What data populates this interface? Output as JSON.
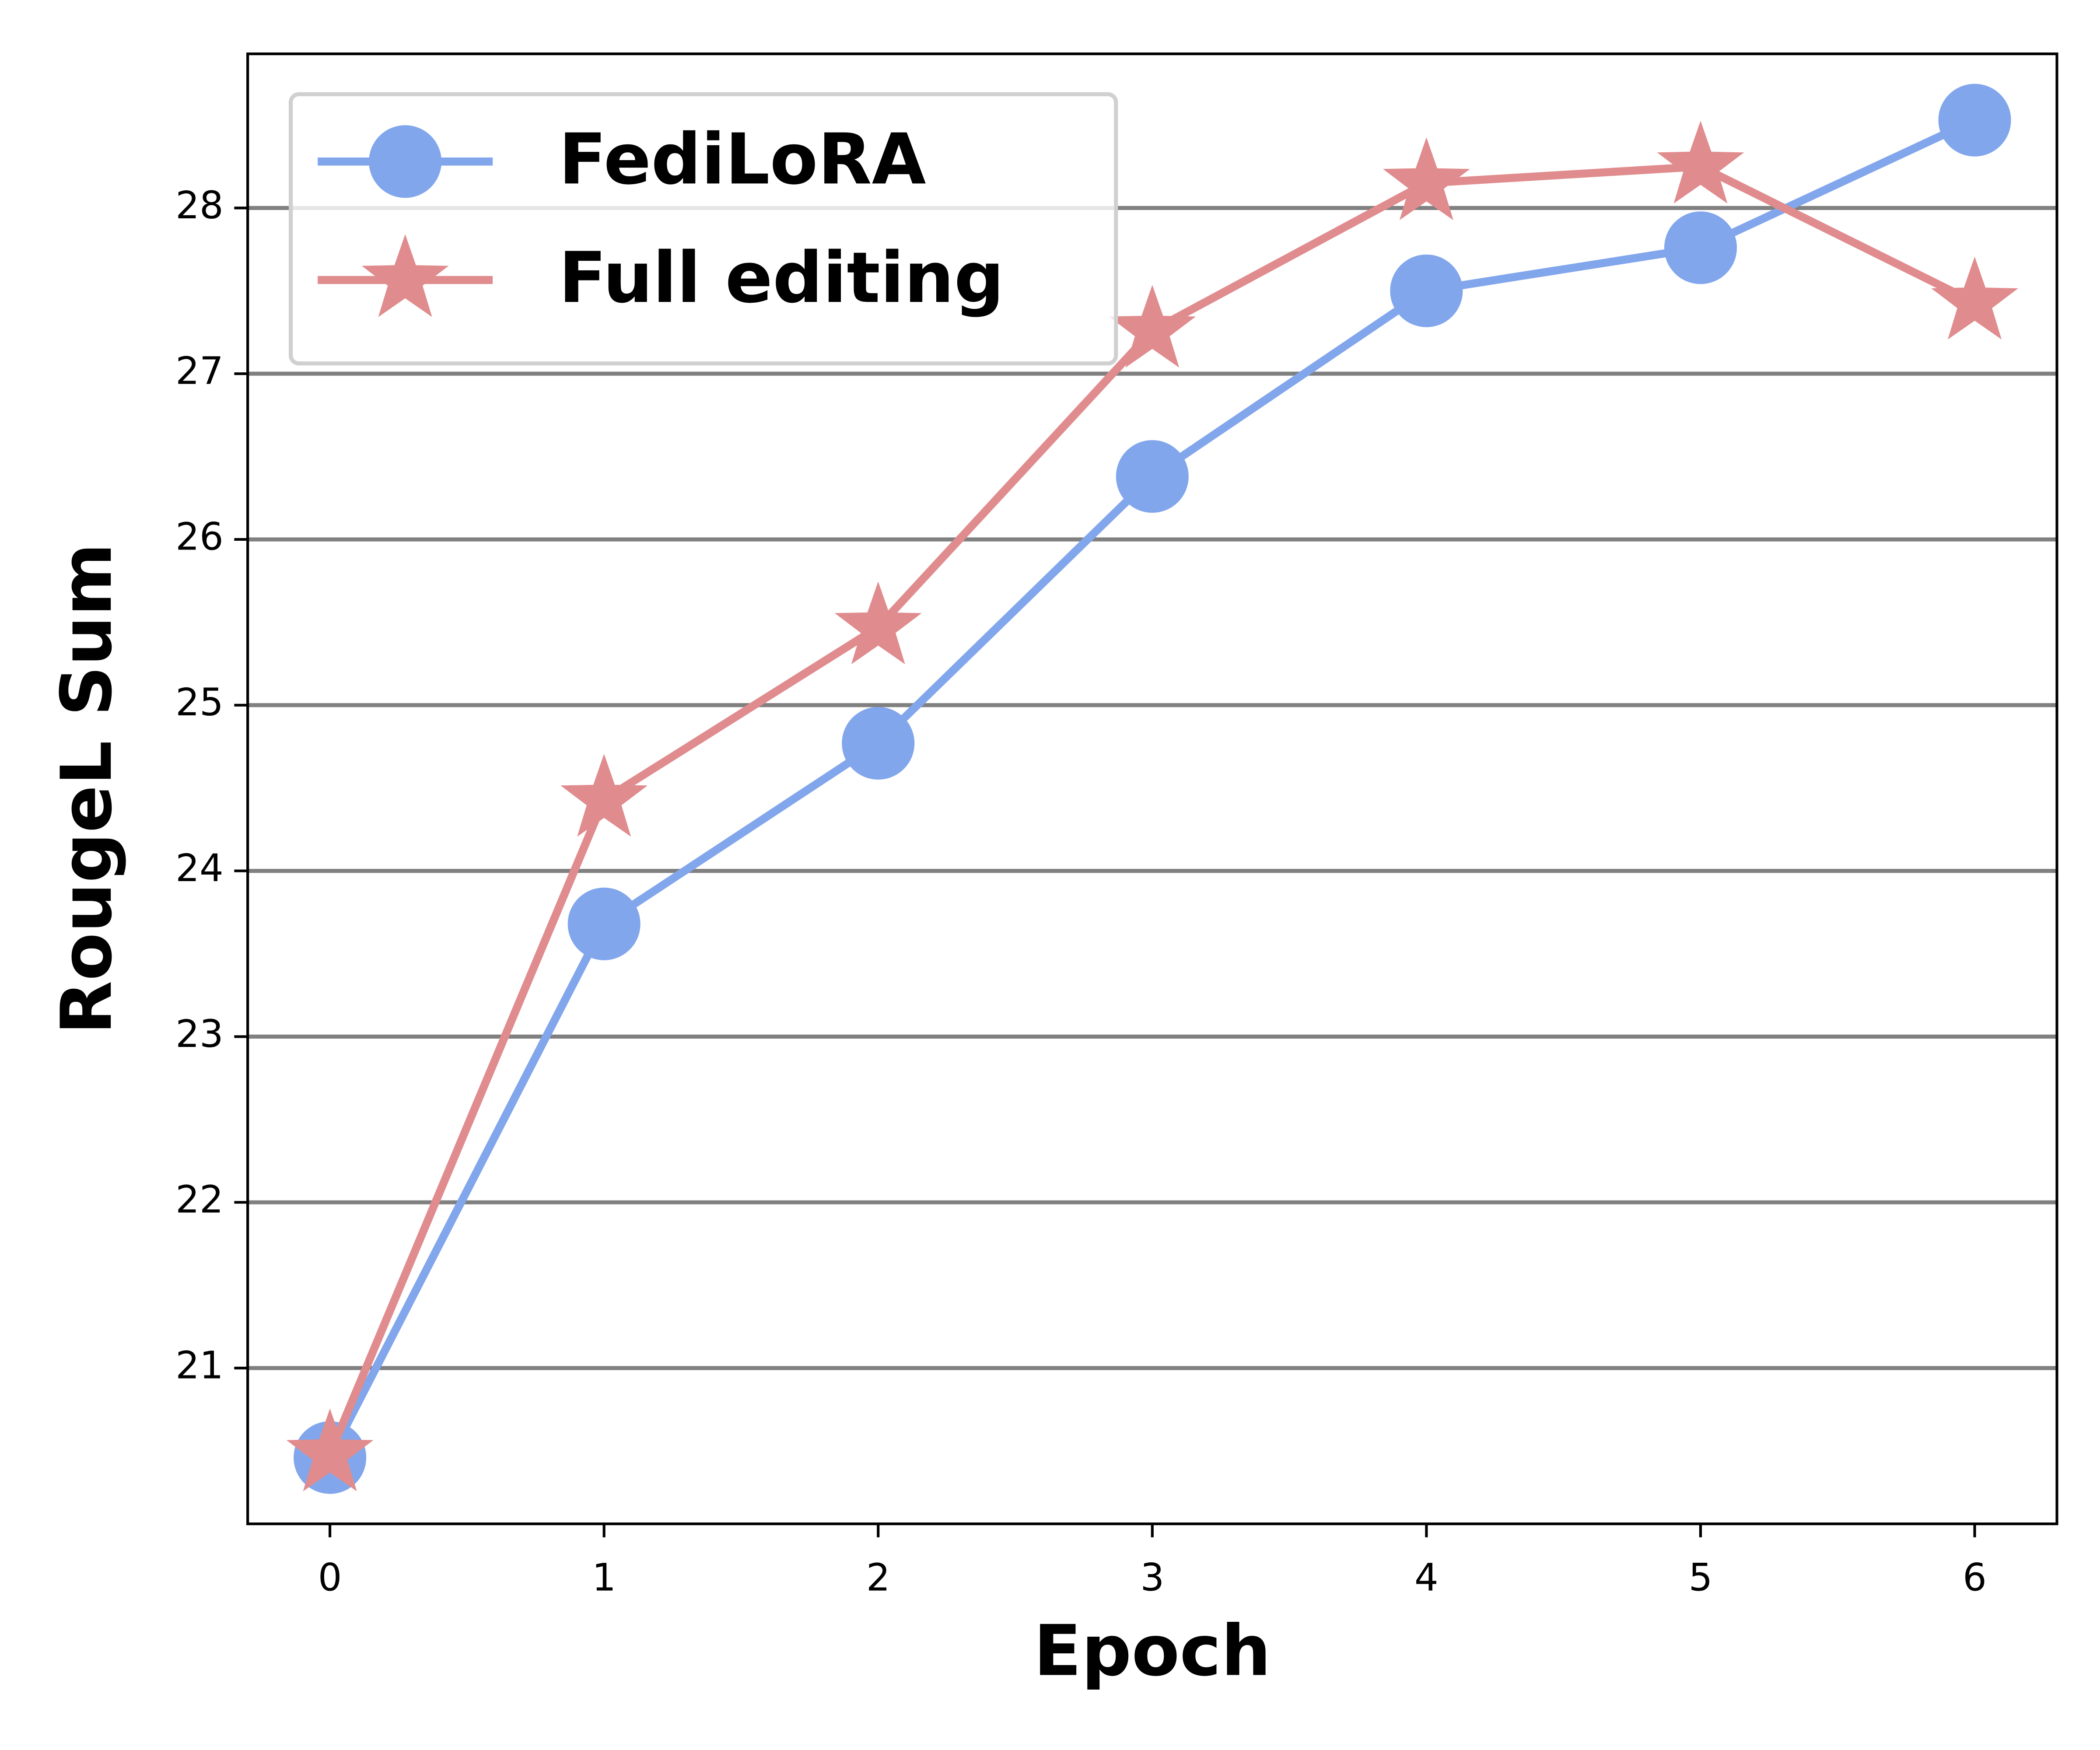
{
  "chart_data": {
    "type": "line",
    "x_label": "Epoch",
    "y_label": "RougeL Sum",
    "x": [
      0,
      1,
      2,
      3,
      4,
      5,
      6
    ],
    "series": [
      {
        "name": "FediLoRA",
        "color": "#82a6ec",
        "marker": "circle",
        "values": [
          20.46,
          23.68,
          24.77,
          26.38,
          27.5,
          27.76,
          28.53
        ]
      },
      {
        "name": "Full editing",
        "color": "#e08c8e",
        "marker": "star",
        "values": [
          20.48,
          24.43,
          25.47,
          27.26,
          28.15,
          28.25,
          27.43
        ]
      }
    ],
    "xlim": [
      -0.3,
      6.3
    ],
    "ylim": [
      20.06,
      28.93
    ],
    "xticks": [
      0,
      1,
      2,
      3,
      4,
      5,
      6
    ],
    "yticks": [
      21,
      22,
      23,
      24,
      25,
      26,
      27,
      28
    ],
    "grid": "y",
    "legend": "upper left"
  }
}
